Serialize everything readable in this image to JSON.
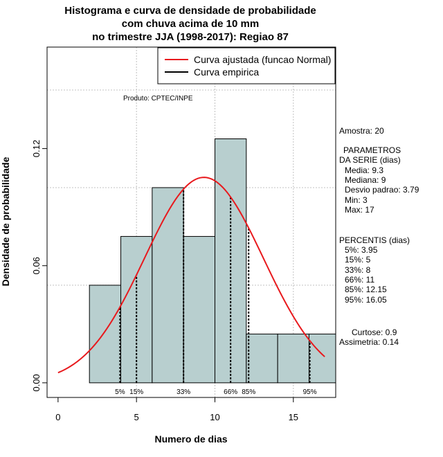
{
  "chart_data": {
    "type": "bar",
    "title_lines": [
      "Histograma e curva de densidade de probabilidade",
      "com chuva acima de 10 mm",
      "no trimestre JJA (1998-2017): Regiao 87"
    ],
    "xlabel": "Numero de dias",
    "ylabel": "Densidade de probabilidade",
    "xlim": [
      -0.7,
      17.7
    ],
    "ylim": [
      -0.0075,
      0.172
    ],
    "x_ticks": [
      0,
      5,
      10,
      15
    ],
    "y_ticks": [
      0.0,
      0.06,
      0.12
    ],
    "y_tick_labels": [
      "0.00",
      "0.06",
      "0.12"
    ],
    "grid_x": [
      5,
      10,
      15
    ],
    "grid_y": [
      0.05,
      0.1,
      0.15
    ],
    "bins": [
      {
        "x0": 2,
        "x1": 4,
        "density": 0.05
      },
      {
        "x0": 4,
        "x1": 6,
        "density": 0.075
      },
      {
        "x0": 6,
        "x1": 8,
        "density": 0.1
      },
      {
        "x0": 8,
        "x1": 10,
        "density": 0.075
      },
      {
        "x0": 10,
        "x1": 12,
        "density": 0.125
      },
      {
        "x0": 12,
        "x1": 14,
        "density": 0.025
      },
      {
        "x0": 14,
        "x1": 16,
        "density": 0.025
      },
      {
        "x0": 16,
        "x1": 18,
        "density": 0.025
      }
    ],
    "normal_fit": {
      "mean": 9.3,
      "sd": 3.79,
      "x_from": 0,
      "x_to": 17
    },
    "percentile_lines": [
      {
        "label": "5%",
        "x": 3.95
      },
      {
        "label": "15%",
        "x": 5
      },
      {
        "label": "33%",
        "x": 8
      },
      {
        "label": "66%",
        "x": 11
      },
      {
        "label": "85%",
        "x": 12.15
      },
      {
        "label": "95%",
        "x": 16.05
      }
    ],
    "legend": [
      {
        "label": "Curva ajustada (funcao Normal)",
        "color": "#e8191d"
      },
      {
        "label": "Curva empirica",
        "color": "#000000"
      }
    ],
    "legend_position": "top-right",
    "source_note": "Produto: CPTEC/INPE",
    "colors": {
      "bar_fill": "#b8cfcf",
      "curve": "#e8191d",
      "grid": "#c0c0c0"
    }
  },
  "stats": {
    "amostra": "Amostra: 20",
    "parametros_header": "PARAMETROS",
    "parametros_sub": "DA SERIE (dias)",
    "media": "Media: 9.3",
    "mediana": "Mediana: 9",
    "desvio": "Desvio padrao: 3.79",
    "min": "Min: 3",
    "max": "Max: 17",
    "percentis_header": "PERCENTIS (dias)",
    "p5": "5%: 3.95",
    "p15": "15%: 5",
    "p33": "33%: 8",
    "p66": "66%: 11",
    "p85": "85%: 12.15",
    "p95": "95%: 16.05",
    "curtose": "Curtose: 0.9",
    "assimetria": "Assimetria: 0.14"
  }
}
